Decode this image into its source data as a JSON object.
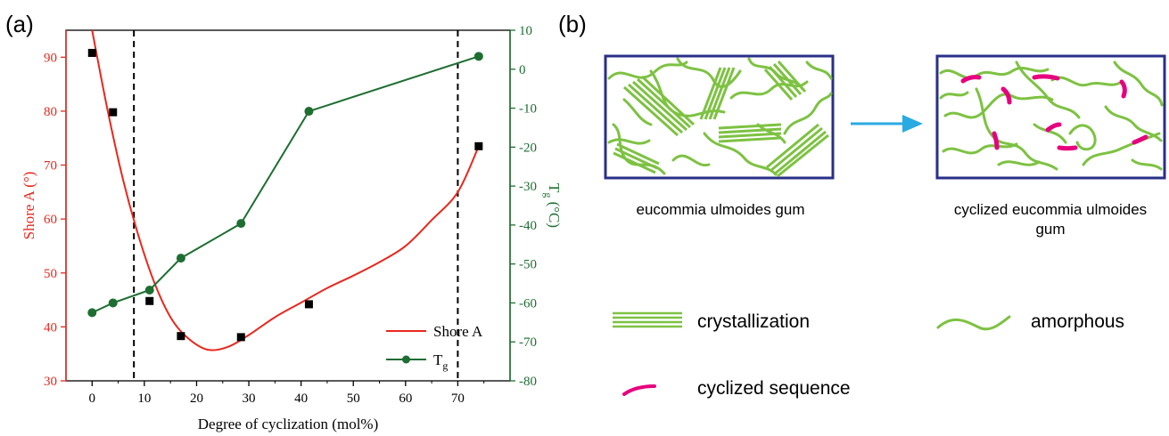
{
  "panel_a": {
    "label": "(a)",
    "legend": {
      "shore_label": "Shore A",
      "tg_label": "T",
      "tg_sub": "g"
    }
  },
  "panel_b": {
    "label": "(b)",
    "caption_left": "eucommia ulmoides gum",
    "caption_right_line1": "cyclized eucommia ulmoides",
    "caption_right_line2": "gum",
    "legend_crystallization": "crystallization",
    "legend_amorphous": "amorphous",
    "legend_cyclized": "cyclized sequence"
  },
  "colors": {
    "shore": "#e8281e",
    "tg": "#1e6e32",
    "crystal_green": "#7dc242",
    "cyclized_pink": "#e6007e",
    "box_border": "#2a2f88",
    "arrow_blue": "#2aaae2",
    "vline": "#000000"
  },
  "chart_data": {
    "type": "line",
    "xlabel": "Degree of cyclization (mol%)",
    "xlim": [
      -5,
      80
    ],
    "x_ticks": [
      0,
      10,
      20,
      30,
      40,
      50,
      60,
      70
    ],
    "left_axis": {
      "ylabel": "Shore A (°)",
      "ylim": [
        30,
        95
      ],
      "ticks": [
        30,
        40,
        50,
        60,
        70,
        80,
        90
      ]
    },
    "right_axis": {
      "ylabel_main": "T",
      "ylabel_sub": "g",
      "ylabel_unit": " (°C)",
      "ylim": [
        -80,
        10
      ],
      "ticks": [
        -80,
        -70,
        -60,
        -50,
        -40,
        -30,
        -20,
        -10,
        0,
        10
      ]
    },
    "reference_lines_x": [
      8,
      70
    ],
    "series": [
      {
        "name": "Shore A",
        "axis": "left",
        "marker": "square",
        "x": [
          0,
          4,
          11,
          17,
          28.5,
          41.5,
          74
        ],
        "values": [
          90.8,
          79.8,
          44.8,
          38.3,
          38.1,
          44.2,
          73.5
        ],
        "fit_curve": {
          "x": [
            0,
            3,
            6,
            9,
            12,
            15,
            18,
            22,
            26,
            30,
            35,
            40,
            45,
            50,
            55,
            60,
            65,
            70,
            74
          ],
          "y": [
            95,
            80,
            67,
            56.5,
            48,
            41.8,
            38.2,
            35.8,
            36.3,
            38.5,
            41.8,
            44.5,
            47.2,
            49.5,
            52,
            55,
            59.8,
            65,
            73.5
          ]
        }
      },
      {
        "name": "T",
        "name_sub": "g",
        "axis": "right",
        "marker": "circle",
        "x": [
          0,
          4,
          11,
          17,
          28.5,
          41.5,
          74
        ],
        "values": [
          -62.5,
          -60,
          -56.7,
          -48.5,
          -39.6,
          -10.8,
          3.3
        ]
      }
    ]
  }
}
